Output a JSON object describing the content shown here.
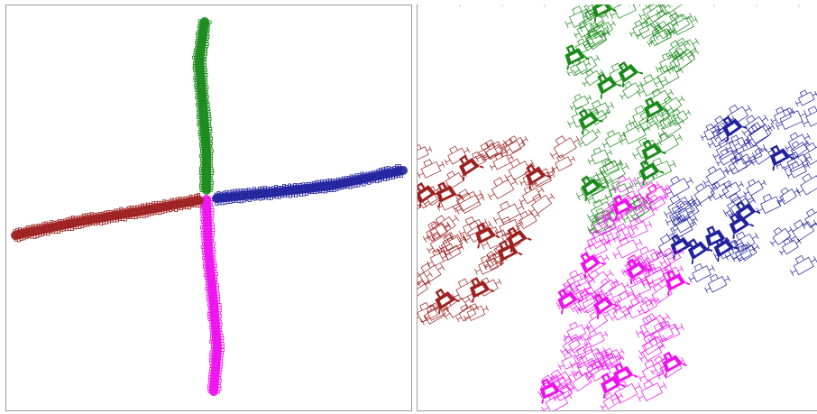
{
  "figure": {
    "left_panel": {
      "view": "overview"
    },
    "right_panel": {
      "view": "zoomed-detail"
    }
  },
  "colors": {
    "north_arm": "#1a8a1a",
    "east_arm": "#22229e",
    "south_arm": "#ee11ee",
    "west_arm": "#9e2020",
    "frame": "#9a9a9a"
  },
  "arms": [
    {
      "direction": "north",
      "color_key": "north_arm"
    },
    {
      "direction": "east",
      "color_key": "east_arm"
    },
    {
      "direction": "south",
      "color_key": "south_arm"
    },
    {
      "direction": "west",
      "color_key": "west_arm"
    }
  ]
}
